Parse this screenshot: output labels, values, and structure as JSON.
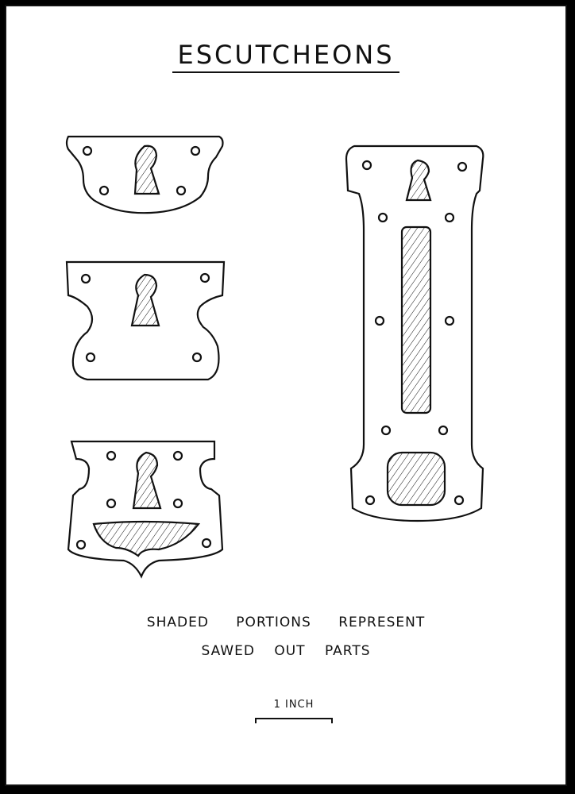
{
  "title": "ESCUTCHEONS",
  "caption": {
    "line1": "SHADED PORTIONS REPRESENT",
    "line2": "SAWED OUT PARTS"
  },
  "scale": {
    "label": "1 INCH"
  },
  "colors": {
    "ink": "#111111",
    "paper": "#ffffff",
    "border": "#000000"
  }
}
